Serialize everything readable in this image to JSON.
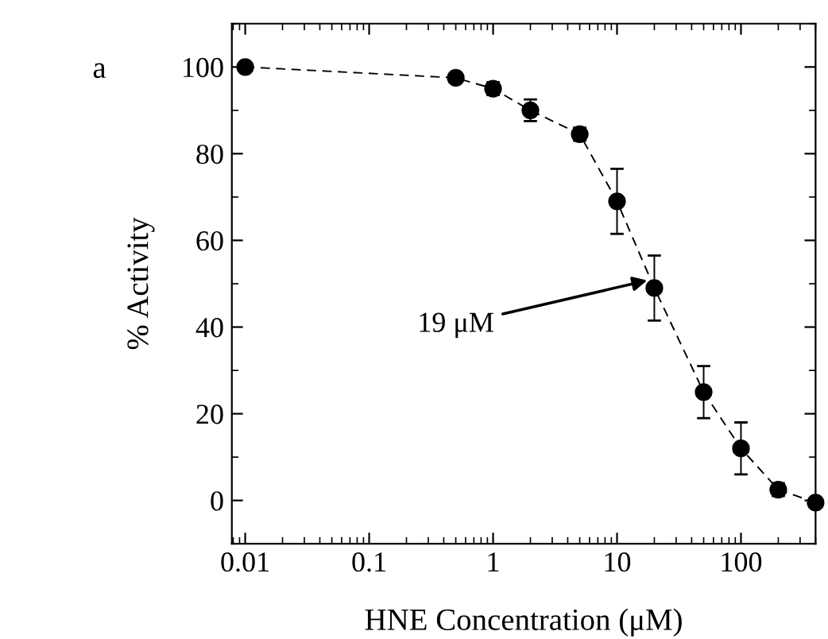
{
  "chart_data": {
    "type": "line",
    "xlabel": "HNE Concentration (μM)",
    "ylabel": "% Activity",
    "log": "x",
    "x": [
      0.01,
      0.5,
      1,
      2,
      5,
      10,
      20,
      50,
      100,
      200,
      400
    ],
    "series": [
      {
        "color": "#000000",
        "values": [
          100,
          97.5,
          95,
          90,
          84.5,
          69,
          49,
          25,
          12,
          2.5,
          -0.5
        ],
        "errors": [
          null,
          null,
          1.5,
          2.5,
          1.5,
          7.5,
          7.5,
          6,
          6,
          1.5,
          null
        ]
      }
    ],
    "xlim": [
      0.0078,
      400
    ],
    "xticks": [
      0.01,
      0.1,
      1,
      10,
      100
    ],
    "ylim": [
      -10,
      110
    ],
    "yticks": [
      0,
      20,
      40,
      60,
      80,
      100
    ],
    "marker": "circle",
    "line_style": "dashed",
    "grid": false,
    "annotations": [
      {
        "text": "19 μM",
        "x": 19,
        "y": 51
      },
      "a"
    ]
  }
}
